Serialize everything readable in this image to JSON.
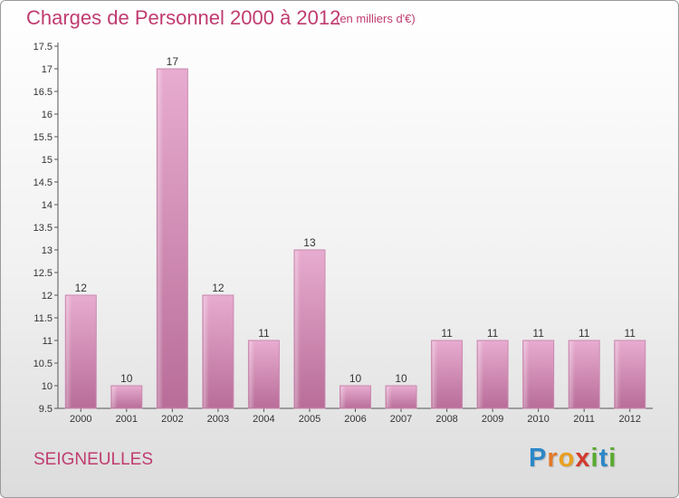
{
  "header": {
    "title": "Charges de Personnel 2000 à 2012",
    "unit": "(en milliers d'€)"
  },
  "footer": {
    "commune": "SEIGNEULLES",
    "logo_letters": [
      "P",
      "r",
      "o",
      "x",
      "i",
      "t",
      "i"
    ]
  },
  "colors": {
    "bar_light": "#e8acd0",
    "bar_dark": "#b86d98",
    "accent": "#c03c70"
  },
  "chart_data": {
    "type": "bar",
    "title": "Charges de Personnel 2000 à 2012",
    "subtitle": "(en milliers d'€)",
    "categories": [
      "2000",
      "2001",
      "2002",
      "2003",
      "2004",
      "2005",
      "2006",
      "2007",
      "2008",
      "2009",
      "2010",
      "2011",
      "2012"
    ],
    "values": [
      12,
      10,
      17,
      12,
      11,
      13,
      10,
      10,
      11,
      11,
      11,
      11,
      11
    ],
    "data_labels": [
      "12",
      "10",
      "17",
      "12",
      "11",
      "13",
      "10",
      "10",
      "11",
      "11",
      "11",
      "11",
      "11"
    ],
    "y_ticks": [
      "9.5",
      "10",
      "10.5",
      "11",
      "11.5",
      "12",
      "12.5",
      "13",
      "13.5",
      "14",
      "14.5",
      "15",
      "15.5",
      "16",
      "16.5",
      "17",
      "17.5"
    ],
    "ylim": [
      9.5,
      17.5
    ],
    "grid": false,
    "legend": "none"
  }
}
